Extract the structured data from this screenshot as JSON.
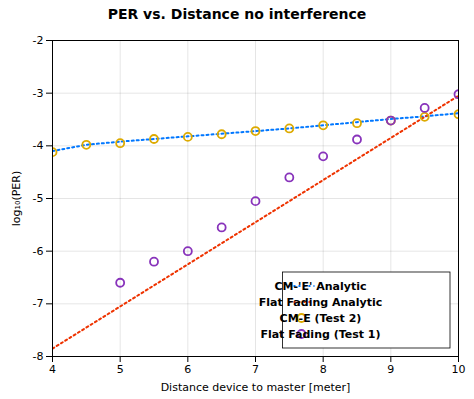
{
  "chart_data": {
    "type": "line",
    "title": "PER vs. Distance no interference",
    "x_label": "Distance device to master [meter]",
    "y_label": "log₁₀(PER)",
    "xlim": [
      4,
      10
    ],
    "ylim": [
      -8,
      -2
    ],
    "xticks": [
      4,
      5,
      6,
      7,
      8,
      9,
      10
    ],
    "yticks": [
      -8,
      -7,
      -6,
      -5,
      -4,
      -3,
      -2
    ],
    "grid": true,
    "legend": "lower right",
    "series": [
      {
        "name": "CM-'E' Analytic",
        "type": "line",
        "line_style": "dotted",
        "color": "#0077FF",
        "x": [
          4.0,
          4.5,
          5.0,
          5.5,
          6.0,
          6.5,
          7.0,
          7.5,
          8.0,
          8.5,
          9.0,
          9.5,
          10.0
        ],
        "values": [
          -4.1,
          -3.98,
          -3.92,
          -3.87,
          -3.82,
          -3.77,
          -3.72,
          -3.67,
          -3.61,
          -3.55,
          -3.49,
          -3.44,
          -3.38
        ]
      },
      {
        "name": "Flat Fading Analytic",
        "type": "line",
        "line_style": "dotted",
        "color": "#EE3300",
        "x": [
          4.0,
          10.0
        ],
        "values": [
          -7.85,
          -3.05
        ]
      },
      {
        "name": "CM-E (Test 2)",
        "type": "scatter",
        "marker": "circle",
        "color": "#DDAA00",
        "x": [
          4.0,
          4.5,
          5.0,
          5.5,
          6.0,
          6.5,
          7.0,
          7.5,
          8.0,
          8.5,
          9.0,
          9.5,
          10.0
        ],
        "values": [
          -4.12,
          -3.98,
          -3.95,
          -3.87,
          -3.83,
          -3.78,
          -3.72,
          -3.67,
          -3.61,
          -3.57,
          -3.52,
          -3.45,
          -3.4
        ]
      },
      {
        "name": "Flat Fading (Test 1)",
        "type": "scatter",
        "marker": "circle",
        "color": "#8833BB",
        "x": [
          5.0,
          5.5,
          6.0,
          6.5,
          7.0,
          7.5,
          8.0,
          8.5,
          9.0,
          9.5,
          10.0
        ],
        "values": [
          -6.6,
          -6.2,
          -6.0,
          -5.55,
          -5.05,
          -4.6,
          -4.2,
          -3.88,
          -3.52,
          -3.28,
          -3.02
        ]
      }
    ]
  }
}
